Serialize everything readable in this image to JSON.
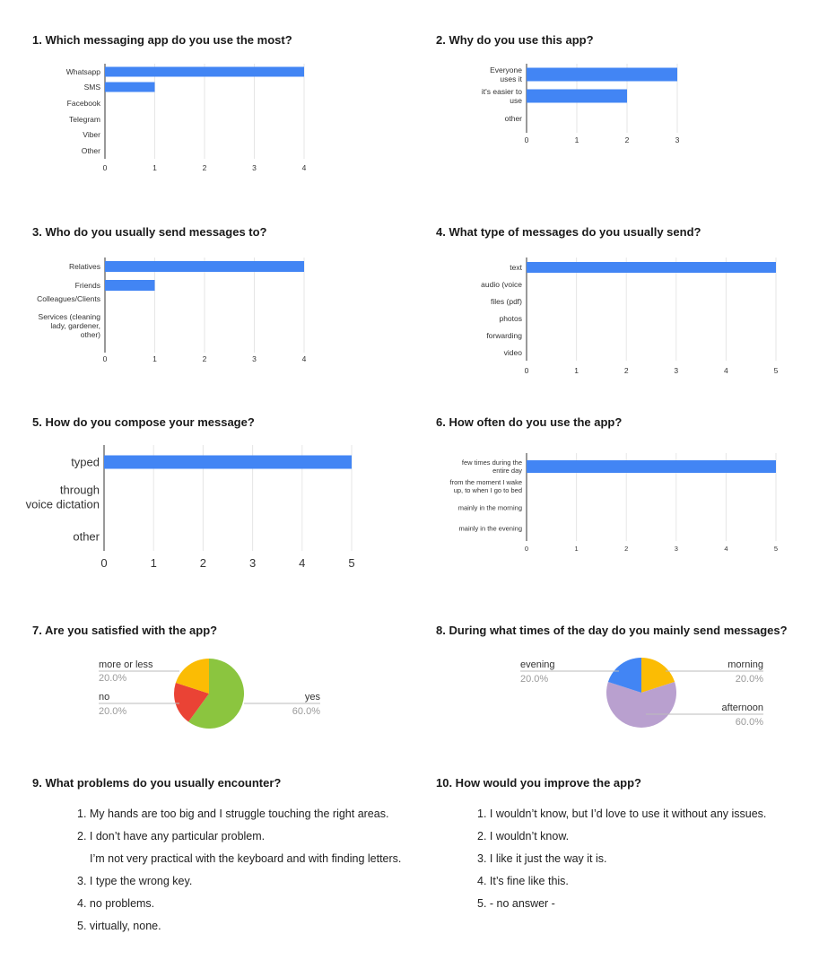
{
  "colors": {
    "bar": "#4285f4",
    "grid": "#e6e6e6",
    "axis": "#333333",
    "pie_green": "#8bc53f",
    "pie_red": "#ea4335",
    "pie_yellow": "#fbbc04",
    "pie_blue": "#4285f4",
    "pie_purple": "#b9a0cf",
    "pie_label_pct": "#9a9a9a"
  },
  "questions": {
    "q1": "1. Which messaging app do you use the most?",
    "q2": "2. Why do you use this app?",
    "q3": "3. Who do you usually send messages to?",
    "q4": "4. What type of messages do you usually send?",
    "q5": "5. How do you compose your message?",
    "q6": "6. How often do you use the app?",
    "q7": "7. Are you satisfied with the app?",
    "q8": "8. During what times of the day do you mainly send messages?",
    "q9": "9. What problems do you usually encounter?",
    "q10": "10. How would you improve the app?"
  },
  "chart_data": [
    {
      "id": "q1",
      "type": "bar",
      "orientation": "horizontal",
      "categories": [
        "Whatsapp",
        "SMS",
        "Facebook",
        "Telegram",
        "Viber",
        "Other"
      ],
      "values": [
        4,
        1,
        0,
        0,
        0,
        0
      ],
      "xlim": [
        0,
        4
      ],
      "ticks": [
        "0",
        "1",
        "2",
        "3",
        "4"
      ],
      "grid": true
    },
    {
      "id": "q2",
      "type": "bar",
      "orientation": "horizontal",
      "categories": [
        [
          "Everyone",
          "uses it"
        ],
        [
          "it's easier to",
          "use"
        ],
        [
          "other"
        ]
      ],
      "values": [
        3,
        2,
        0
      ],
      "xlim": [
        0,
        3
      ],
      "ticks": [
        "0",
        "1",
        "2",
        "3"
      ],
      "grid": true
    },
    {
      "id": "q3",
      "type": "bar",
      "orientation": "horizontal",
      "categories": [
        [
          "Relatives"
        ],
        [
          "Friends"
        ],
        [
          "Colleagues/Clients"
        ],
        [
          "Services (cleaning",
          "lady, gardener,",
          "other)"
        ]
      ],
      "values": [
        4,
        1,
        0,
        0
      ],
      "xlim": [
        0,
        4
      ],
      "ticks": [
        "0",
        "1",
        "2",
        "3",
        "4"
      ],
      "grid": true
    },
    {
      "id": "q4",
      "type": "bar",
      "orientation": "horizontal",
      "categories": [
        "text",
        "audio (voice",
        "files (pdf)",
        "photos",
        "forwarding",
        "video"
      ],
      "values": [
        5,
        0,
        0,
        0,
        0,
        0
      ],
      "xlim": [
        0,
        5
      ],
      "ticks": [
        "0",
        "1",
        "2",
        "3",
        "4",
        "5"
      ],
      "grid": true
    },
    {
      "id": "q5",
      "type": "bar",
      "orientation": "horizontal",
      "categories": [
        [
          "typed"
        ],
        [
          "through",
          "voice dictation"
        ],
        [
          "other"
        ]
      ],
      "values": [
        5,
        0,
        0
      ],
      "xlim": [
        0,
        5
      ],
      "ticks": [
        "0",
        "1",
        "2",
        "3",
        "4",
        "5"
      ],
      "grid": true
    },
    {
      "id": "q6",
      "type": "bar",
      "orientation": "horizontal",
      "categories": [
        [
          "few times during the",
          "entire day"
        ],
        [
          "from the moment I wake",
          "up, to when I go to bed"
        ],
        [
          "mainly in the morning"
        ],
        [
          "mainly in the evening"
        ]
      ],
      "values": [
        5,
        0,
        0,
        0
      ],
      "xlim": [
        0,
        5
      ],
      "ticks": [
        "0",
        "1",
        "2",
        "3",
        "4",
        "5"
      ],
      "grid": true
    },
    {
      "id": "q7",
      "type": "pie",
      "slices": [
        {
          "label": "yes",
          "pct": "60.0%",
          "value": 60,
          "color": "#8bc53f"
        },
        {
          "label": "no",
          "pct": "20.0%",
          "value": 20,
          "color": "#ea4335"
        },
        {
          "label": "more or less",
          "pct": "20.0%",
          "value": 20,
          "color": "#fbbc04"
        }
      ]
    },
    {
      "id": "q8",
      "type": "pie",
      "slices": [
        {
          "label": "morning",
          "pct": "20.0%",
          "value": 20,
          "color": "#fbbc04"
        },
        {
          "label": "afternoon",
          "pct": "60.0%",
          "value": 60,
          "color": "#b9a0cf"
        },
        {
          "label": "evening",
          "pct": "20.0%",
          "value": 20,
          "color": "#4285f4"
        }
      ]
    }
  ],
  "answers": {
    "q9": [
      "1. My hands are too big and I struggle touching the right areas.",
      "2. I don’t have any particular problem.",
      "I’m not very practical with the keyboard and with finding letters.",
      "3. I type the wrong key.",
      "4. no problems.",
      "5. virtually, none."
    ],
    "q10": [
      "1. I wouldn’t know, but I’d love to use it without any issues.",
      "2. I wouldn’t know.",
      "3. I like it just the way it is.",
      "4. It’s fine like this.",
      "5. - no answer -"
    ]
  }
}
